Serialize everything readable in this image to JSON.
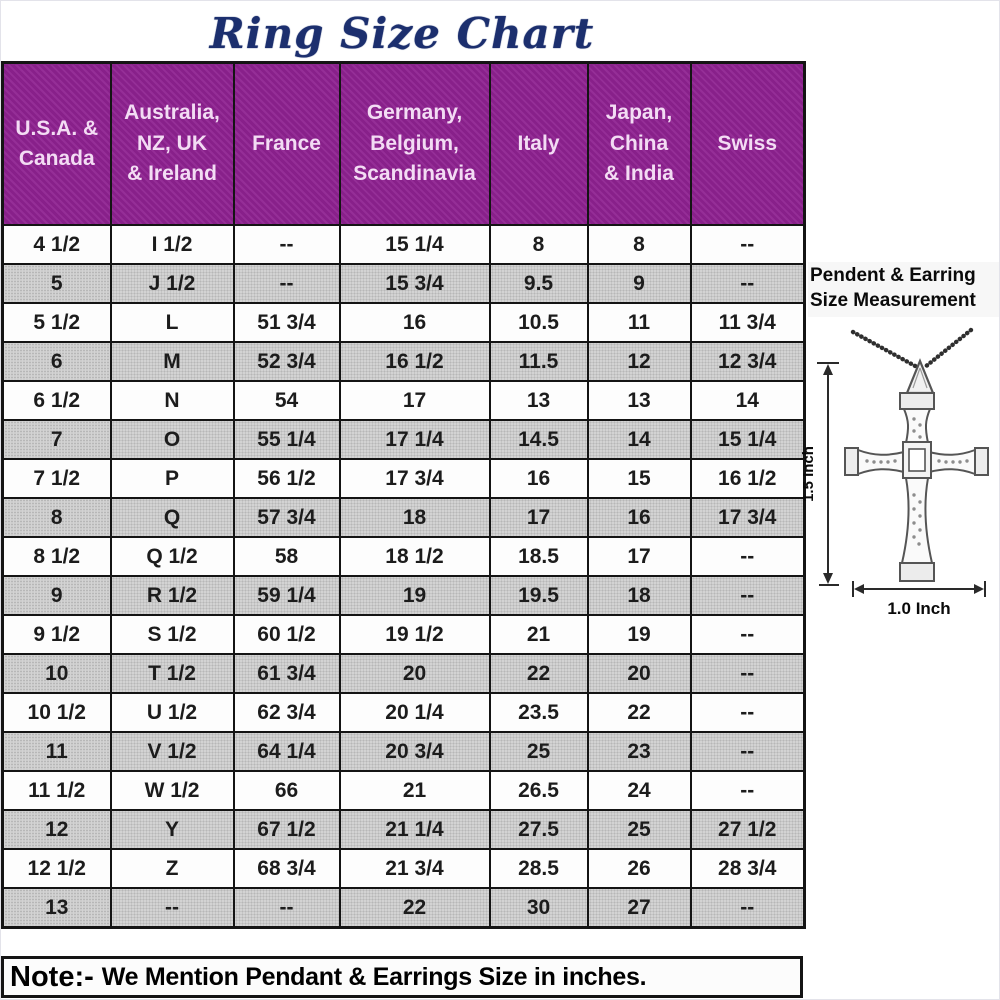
{
  "title": "Ring Size Chart",
  "colors": {
    "header_purple": "#8e2190",
    "header_text": "#f3dcf4",
    "title_navy": "#1c2f6e",
    "stripe_gray": "#d3d3d3",
    "border_black": "#141414"
  },
  "chart_data": {
    "type": "table",
    "title": "Ring Size Chart",
    "columns": [
      "U.S.A. &\nCanada",
      "Australia,\nNZ, UK\n& Ireland",
      "France",
      "Germany,\nBelgium,\nScandinavia",
      "Italy",
      "Japan,\nChina\n& India",
      "Swiss"
    ],
    "rows": [
      [
        "4 1/2",
        "I 1/2",
        "--",
        "15 1/4",
        "8",
        "8",
        "--"
      ],
      [
        "5",
        "J 1/2",
        "--",
        "15 3/4",
        "9.5",
        "9",
        "--"
      ],
      [
        "5 1/2",
        "L",
        "51 3/4",
        "16",
        "10.5",
        "11",
        "11 3/4"
      ],
      [
        "6",
        "M",
        "52 3/4",
        "16 1/2",
        "11.5",
        "12",
        "12 3/4"
      ],
      [
        "6 1/2",
        "N",
        "54",
        "17",
        "13",
        "13",
        "14"
      ],
      [
        "7",
        "O",
        "55 1/4",
        "17 1/4",
        "14.5",
        "14",
        "15 1/4"
      ],
      [
        "7 1/2",
        "P",
        "56 1/2",
        "17 3/4",
        "16",
        "15",
        "16 1/2"
      ],
      [
        "8",
        "Q",
        "57 3/4",
        "18",
        "17",
        "16",
        "17 3/4"
      ],
      [
        "8 1/2",
        "Q 1/2",
        "58",
        "18 1/2",
        "18.5",
        "17",
        "--"
      ],
      [
        "9",
        "R 1/2",
        "59 1/4",
        "19",
        "19.5",
        "18",
        "--"
      ],
      [
        "9 1/2",
        "S 1/2",
        "60 1/2",
        "19 1/2",
        "21",
        "19",
        "--"
      ],
      [
        "10",
        "T 1/2",
        "61 3/4",
        "20",
        "22",
        "20",
        "--"
      ],
      [
        "10 1/2",
        "U 1/2",
        "62 3/4",
        "20 1/4",
        "23.5",
        "22",
        "--"
      ],
      [
        "11",
        "V 1/2",
        "64 1/4",
        "20 3/4",
        "25",
        "23",
        "--"
      ],
      [
        "11 1/2",
        "W 1/2",
        "66",
        "21",
        "26.5",
        "24",
        "--"
      ],
      [
        "12",
        "Y",
        "67 1/2",
        "21 1/4",
        "27.5",
        "25",
        "27 1/2"
      ],
      [
        "12 1/2",
        "Z",
        "68 3/4",
        "21 3/4",
        "28.5",
        "26",
        "28 3/4"
      ],
      [
        "13",
        "--",
        "--",
        "22",
        "30",
        "27",
        "--"
      ]
    ]
  },
  "note": {
    "prefix": "Note:-",
    "text": "We Mention Pendant & Earrings Size in inches."
  },
  "side_panel": {
    "heading": "Pendent & Earring\nSize Measurement",
    "height_label": "1.5 Inch",
    "width_label": "1.0 Inch"
  }
}
